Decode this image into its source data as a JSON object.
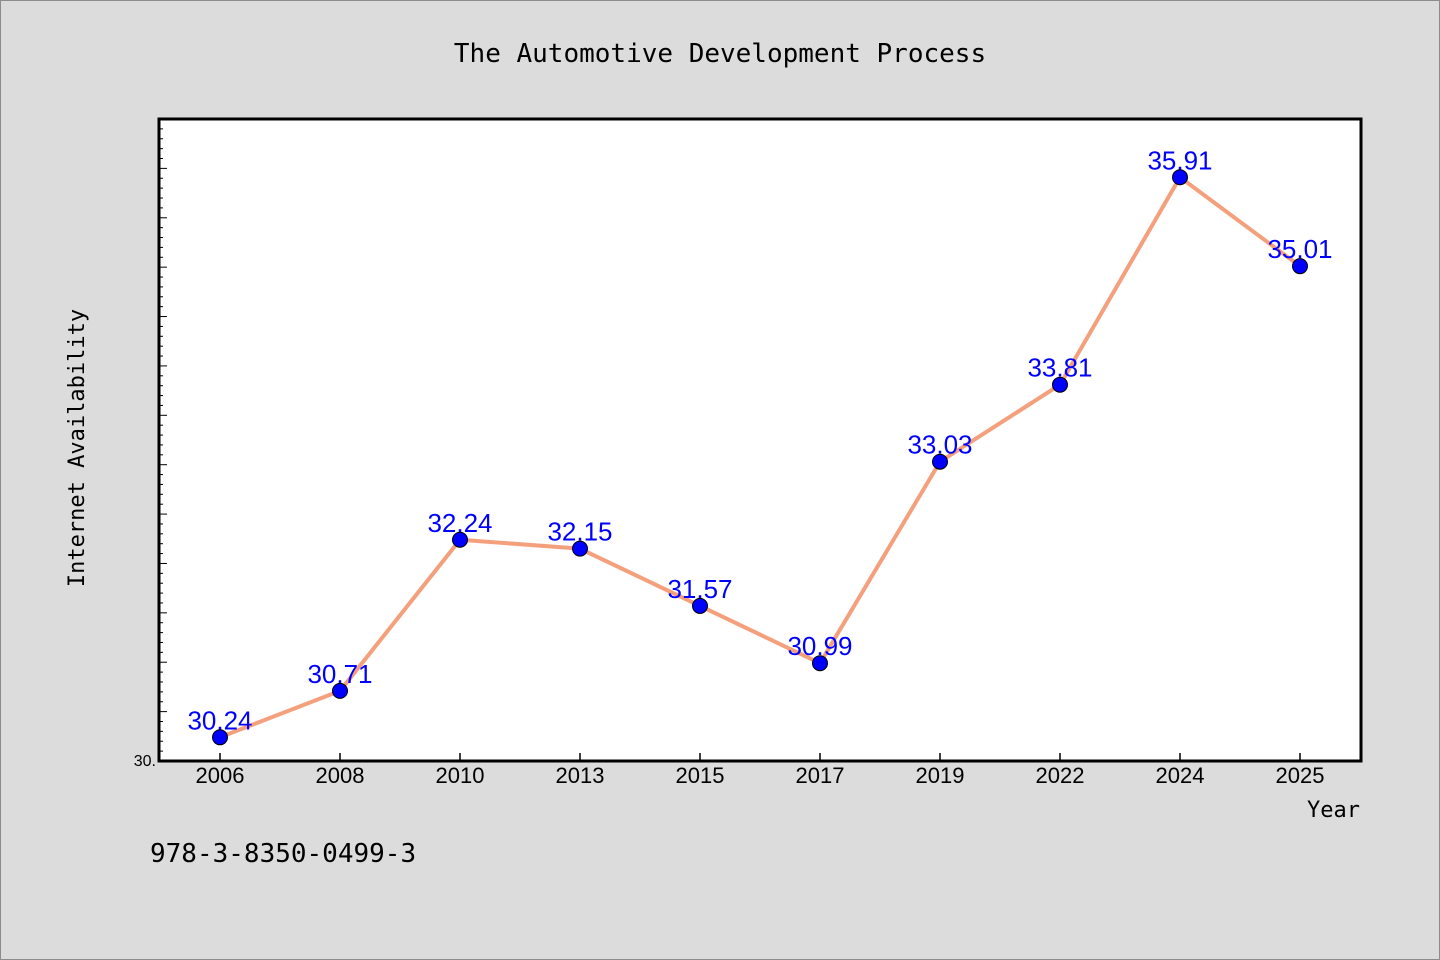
{
  "chart_data": {
    "type": "line",
    "title": "The Automotive Development Process",
    "xlabel": "Year",
    "ylabel": "Internet Availability",
    "categories": [
      "2006",
      "2008",
      "2010",
      "2013",
      "2015",
      "2017",
      "2019",
      "2022",
      "2024",
      "2025"
    ],
    "series": [
      {
        "values": [
          30.24,
          30.71,
          32.24,
          32.15,
          31.57,
          30.99,
          33.03,
          33.81,
          35.91,
          35.01
        ]
      }
    ],
    "data_labels": [
      "30.24",
      "30.71",
      "32.24",
      "32.15",
      "31.57",
      "30.99",
      "33.03",
      "33.81",
      "35.91",
      "35.01"
    ],
    "ylim": [
      30.0,
      36.5
    ],
    "y_tick_labels": [
      "30."
    ],
    "grid": false,
    "line_color": "#f4a07c",
    "marker_color": "#0000ff",
    "label_color": "#0000ff"
  },
  "footer": {
    "isbn": "978-3-8350-0499-3"
  }
}
